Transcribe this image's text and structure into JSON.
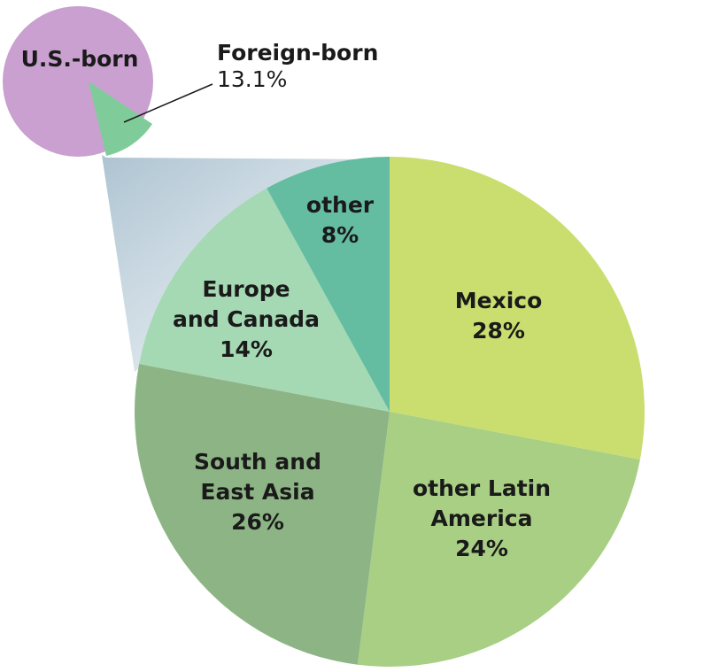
{
  "chart_data": [
    {
      "type": "pie",
      "slices": [
        {
          "label": "U.S.-born",
          "value": null,
          "color": "#c9a0d0"
        },
        {
          "label": "Foreign-born",
          "value_label": "13.1%",
          "value": 13.1,
          "color": "#7fcc9a"
        }
      ]
    },
    {
      "type": "pie",
      "slices": [
        {
          "label_lines": [
            "Mexico"
          ],
          "value_label": "28%",
          "value": 28,
          "color": "#cade70"
        },
        {
          "label_lines": [
            "other Latin",
            "America"
          ],
          "value_label": "24%",
          "value": 24,
          "color": "#a8cf84"
        },
        {
          "label_lines": [
            "South and",
            "East Asia"
          ],
          "value_label": "26%",
          "value": 26,
          "color": "#8db484"
        },
        {
          "label_lines": [
            "Europe",
            "and Canada"
          ],
          "value_label": "14%",
          "value": 14,
          "color": "#a5d9b4"
        },
        {
          "label_lines": [
            "other"
          ],
          "value_label": "8%",
          "value": 8,
          "color": "#64bda1"
        }
      ]
    }
  ]
}
